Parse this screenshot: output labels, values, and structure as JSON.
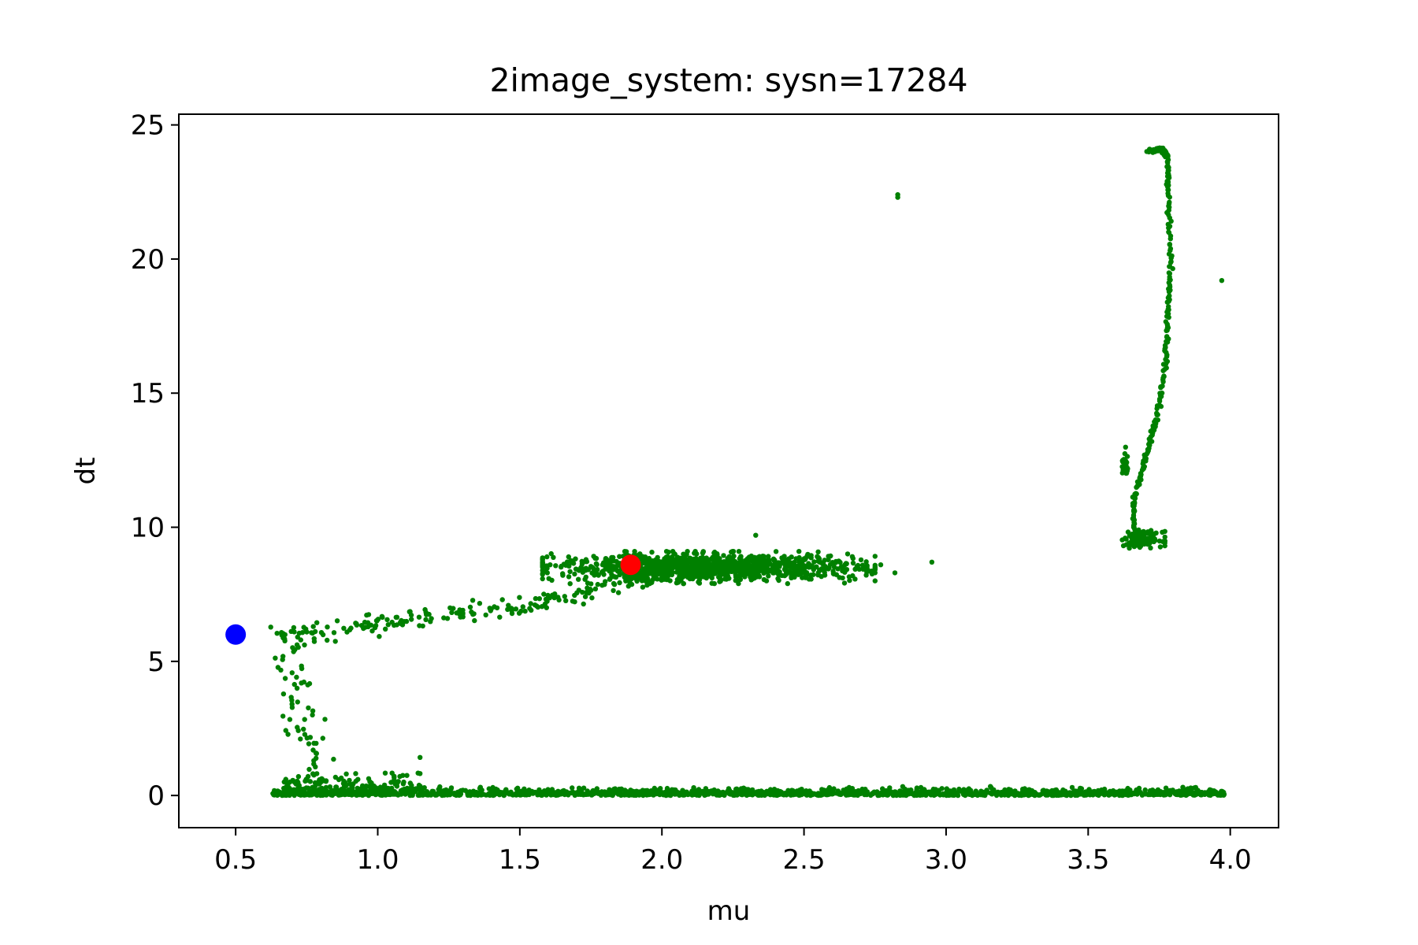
{
  "chart_data": {
    "type": "scatter",
    "title": "2image_system: sysn=17284",
    "xlabel": "mu",
    "ylabel": "dt",
    "xlim": [
      0.3,
      4.17
    ],
    "ylim": [
      -1.2,
      25.4
    ],
    "xticks": [
      0.5,
      1.0,
      1.5,
      2.0,
      2.5,
      3.0,
      3.5,
      4.0
    ],
    "xtick_labels": [
      "0.5",
      "1.0",
      "1.5",
      "2.0",
      "2.5",
      "3.0",
      "3.5",
      "4.0"
    ],
    "yticks": [
      0,
      5,
      10,
      15,
      20,
      25
    ],
    "ytick_labels": [
      "0",
      "5",
      "10",
      "15",
      "20",
      "25"
    ],
    "grid": false,
    "colors": {
      "cloud": "#008000",
      "blue_marker": "#0000ff",
      "red_marker": "#ff0000"
    },
    "highlight_points": [
      {
        "x": 0.5,
        "y": 6.0,
        "color": "#0000ff"
      },
      {
        "x": 1.89,
        "y": 8.6,
        "color": "#ff0000"
      }
    ],
    "cloud_regions": [
      {
        "kind": "band",
        "x": [
          0.63,
          3.98
        ],
        "y": [
          0.0,
          0.25
        ],
        "n": 1600
      },
      {
        "kind": "band",
        "x": [
          0.66,
          1.15
        ],
        "y": [
          0.1,
          0.9
        ],
        "n": 160
      },
      {
        "kind": "segment",
        "x": [
          0.66,
          0.78
        ],
        "y": [
          6.0,
          1.0
        ],
        "n": 60
      },
      {
        "kind": "segment",
        "x": [
          0.66,
          1.55
        ],
        "y": [
          6.0,
          7.1
        ],
        "n": 130
      },
      {
        "kind": "segment",
        "x": [
          1.55,
          2.0
        ],
        "y": [
          7.1,
          8.2
        ],
        "n": 70
      },
      {
        "kind": "ellipse",
        "x": [
          1.58,
          2.75
        ],
        "y": [
          7.9,
          9.1
        ],
        "n": 1200
      },
      {
        "kind": "points",
        "x": [
          2.83,
          2.83,
          2.95,
          2.77,
          2.82,
          3.97,
          2.33
        ],
        "y": [
          22.4,
          22.3,
          8.7,
          8.6,
          8.3,
          19.2,
          9.7
        ]
      },
      {
        "kind": "curve",
        "path": [
          [
            3.66,
            9.8
          ],
          [
            3.66,
            11.0
          ],
          [
            3.7,
            12.5
          ],
          [
            3.74,
            14.0
          ],
          [
            3.77,
            16.0
          ],
          [
            3.78,
            18.0
          ],
          [
            3.79,
            20.0
          ],
          [
            3.78,
            22.5
          ],
          [
            3.78,
            23.8
          ],
          [
            3.76,
            24.1
          ],
          [
            3.71,
            24.0
          ]
        ],
        "n": 260
      },
      {
        "kind": "band",
        "x": [
          3.62,
          3.64
        ],
        "y": [
          12.0,
          12.9
        ],
        "n": 30
      },
      {
        "kind": "ellipse",
        "x": [
          3.62,
          3.77
        ],
        "y": [
          9.2,
          9.9
        ],
        "n": 120
      }
    ]
  }
}
